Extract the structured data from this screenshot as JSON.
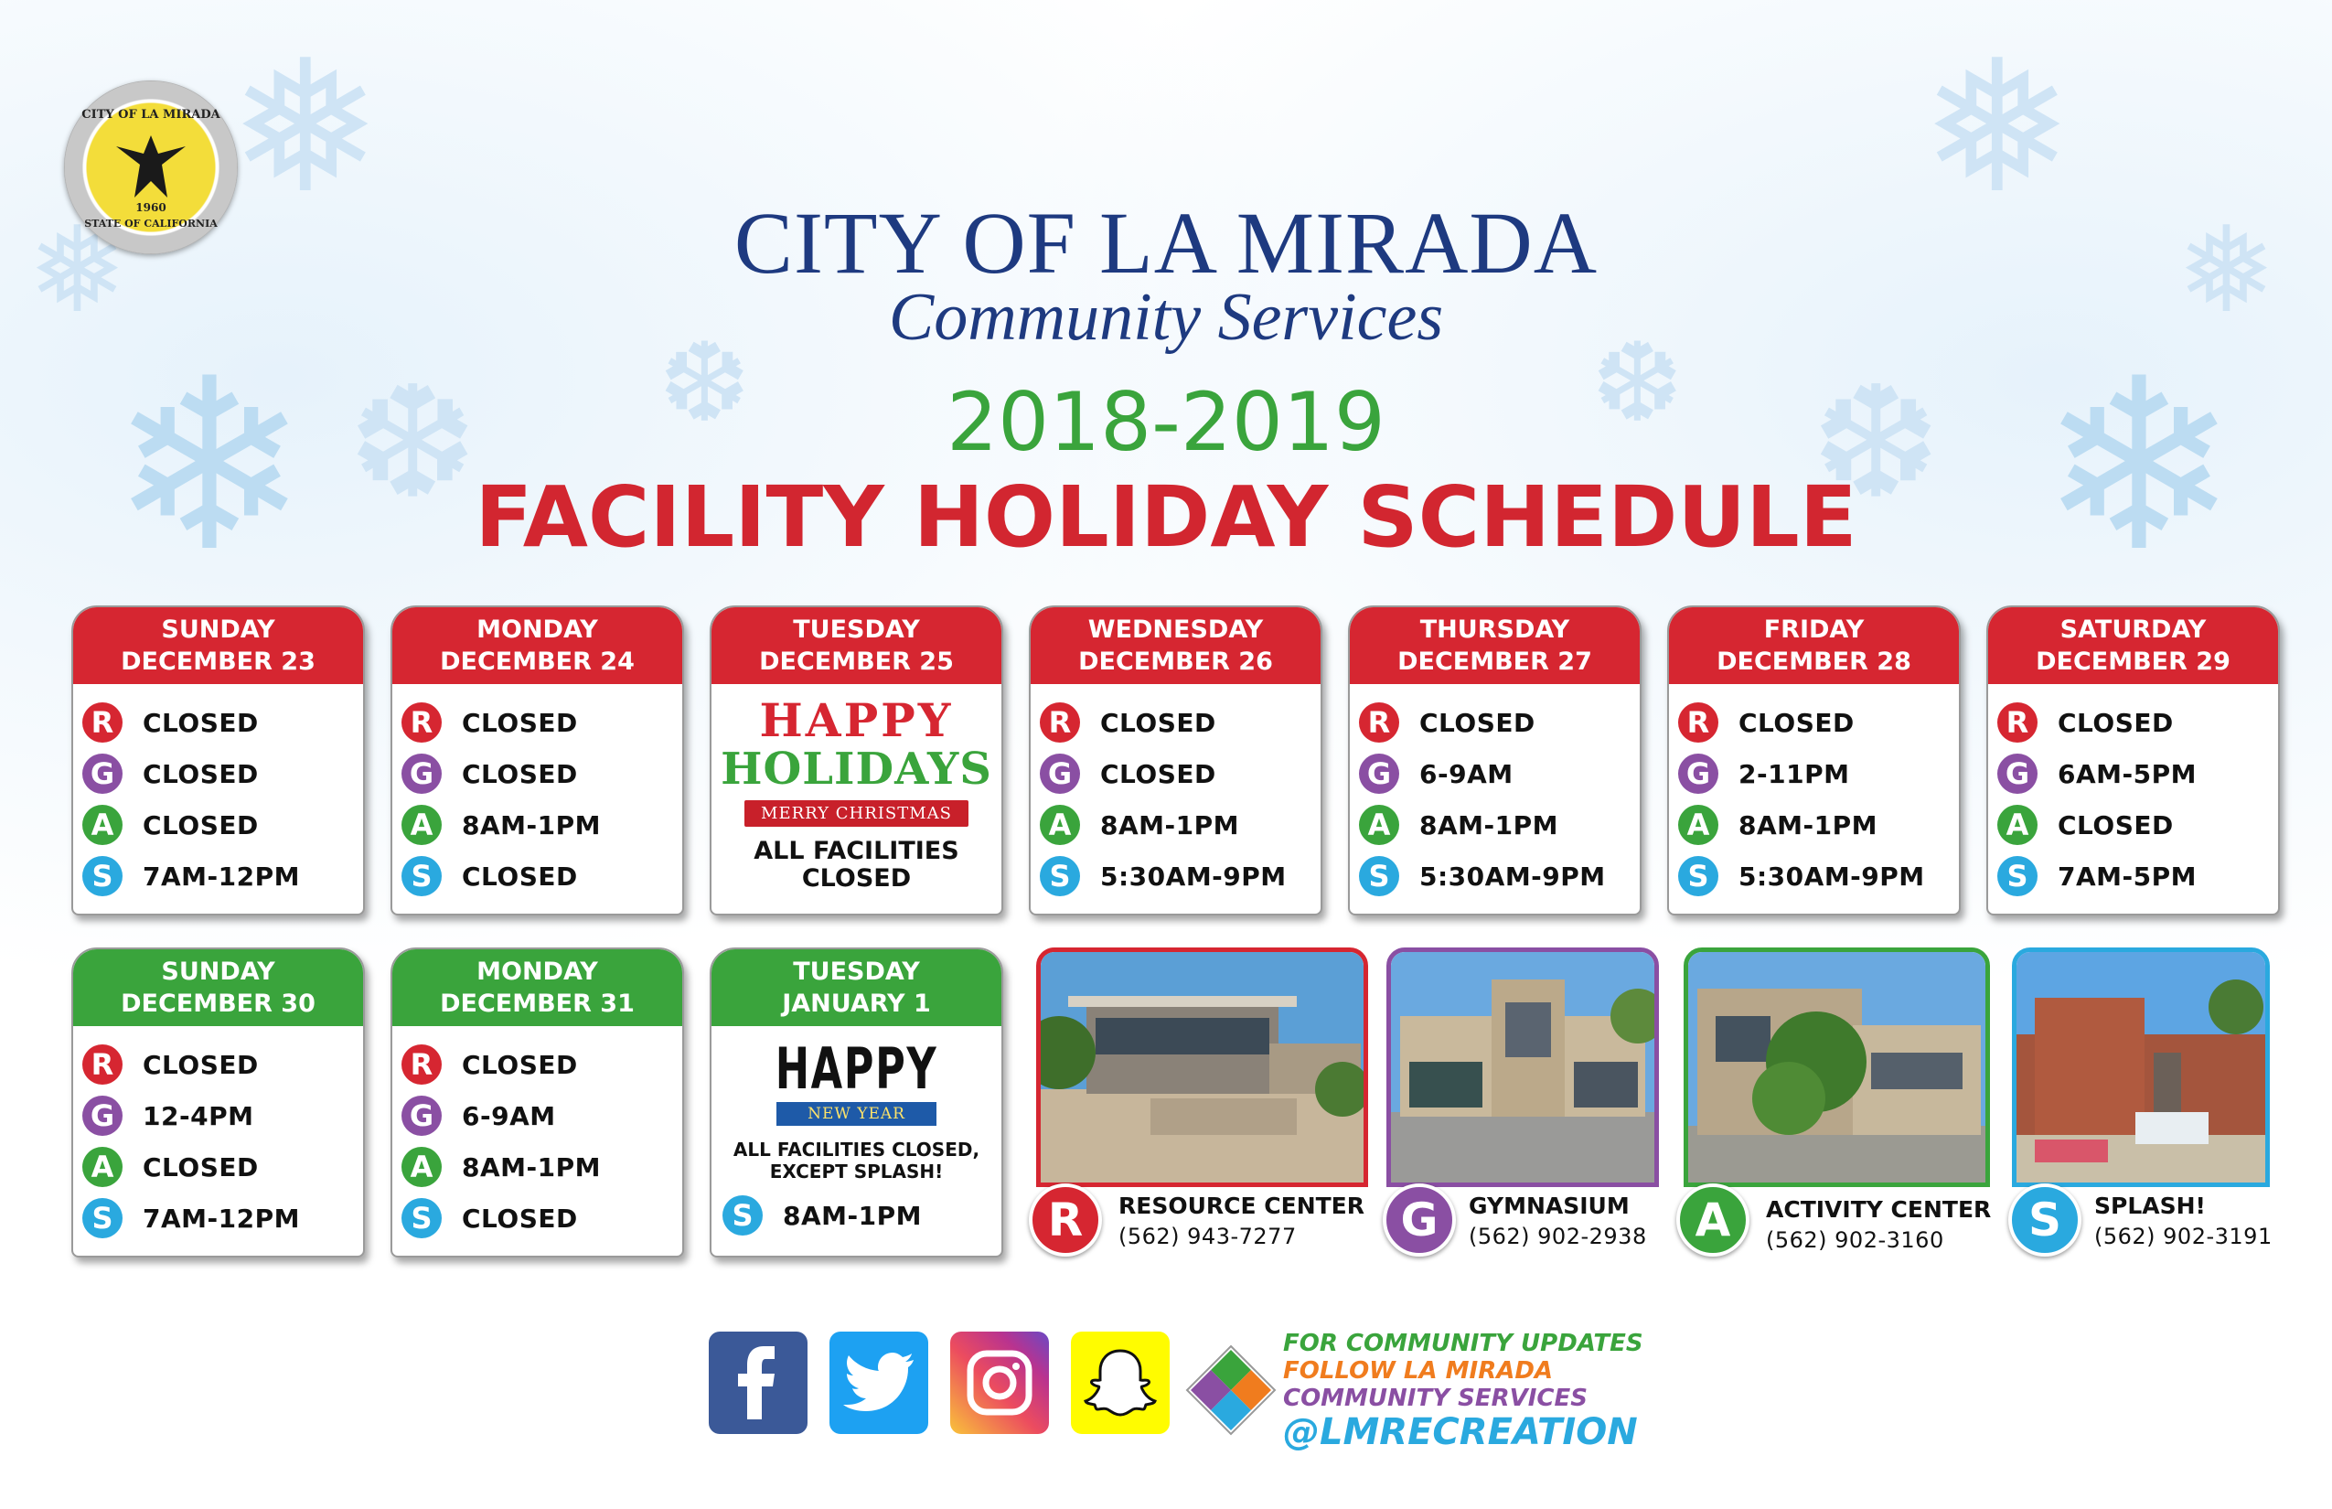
{
  "seal": {
    "top_text": "CITY OF LA MIRADA",
    "year": "1960",
    "bottom_text": "STATE OF CALIFORNIA"
  },
  "header": {
    "line1": "CITY OF LA MIRADA",
    "line2": "Community Services",
    "years": "2018-2019",
    "title": "FACILITY HOLIDAY SCHEDULE"
  },
  "days": [
    {
      "day": "SUNDAY",
      "date": "DECEMBER 23",
      "R": "CLOSED",
      "G": "CLOSED",
      "A": "CLOSED",
      "S": "7AM-12PM"
    },
    {
      "day": "MONDAY",
      "date": "DECEMBER 24",
      "R": "CLOSED",
      "G": "CLOSED",
      "A": "8AM-1PM",
      "S": "CLOSED"
    },
    {
      "day": "TUESDAY",
      "date": "DECEMBER 25",
      "happy": "HAPPY",
      "holidays": "HOLIDAYS",
      "merry": "MERRY CHRISTMAS",
      "note": "ALL FACILITIES CLOSED"
    },
    {
      "day": "WEDNESDAY",
      "date": "DECEMBER 26",
      "R": "CLOSED",
      "G": "CLOSED",
      "A": "8AM-1PM",
      "S": "5:30AM-9PM"
    },
    {
      "day": "THURSDAY",
      "date": "DECEMBER 27",
      "R": "CLOSED",
      "G": "6-9AM",
      "A": "8AM-1PM",
      "S": "5:30AM-9PM"
    },
    {
      "day": "FRIDAY",
      "date": "DECEMBER 28",
      "R": "CLOSED",
      "G": "2-11PM",
      "A": "8AM-1PM",
      "S": "5:30AM-9PM"
    },
    {
      "day": "SATURDAY",
      "date": "DECEMBER 29",
      "R": "CLOSED",
      "G": "6AM-5PM",
      "A": "CLOSED",
      "S": "7AM-5PM"
    },
    {
      "day": "SUNDAY",
      "date": "DECEMBER 30",
      "R": "CLOSED",
      "G": "12-4PM",
      "A": "CLOSED",
      "S": "7AM-12PM"
    },
    {
      "day": "MONDAY",
      "date": "DECEMBER 31",
      "R": "CLOSED",
      "G": "6-9AM",
      "A": "8AM-1PM",
      "S": "CLOSED"
    },
    {
      "day": "TUESDAY",
      "date": "JANUARY 1",
      "happy": "HAPPY",
      "new_year": "NEW YEAR",
      "note": "ALL FACILITIES CLOSED, EXCEPT SPLASH!",
      "S": "8AM-1PM"
    }
  ],
  "facilities": [
    {
      "letter": "R",
      "name": "RESOURCE CENTER",
      "phone": "(562) 943-7277",
      "color": "#d62631"
    },
    {
      "letter": "G",
      "name": "GYMNASIUM",
      "phone": "(562) 902-2938",
      "color": "#8a4fa3"
    },
    {
      "letter": "A",
      "name": "ACTIVITY CENTER",
      "phone": "(562) 902-3160",
      "color": "#3aa43c"
    },
    {
      "letter": "S",
      "name": "SPLASH!",
      "phone": "(562) 902-3191",
      "color": "#2aa9df"
    }
  ],
  "social": {
    "icons": [
      "facebook-icon",
      "twitter-icon",
      "instagram-icon",
      "snapchat-icon"
    ],
    "line1": "FOR COMMUNITY UPDATES",
    "line2": "FOLLOW LA MIRADA",
    "line3": "COMMUNITY SERVICES",
    "handle": "@LMRECREATION"
  }
}
